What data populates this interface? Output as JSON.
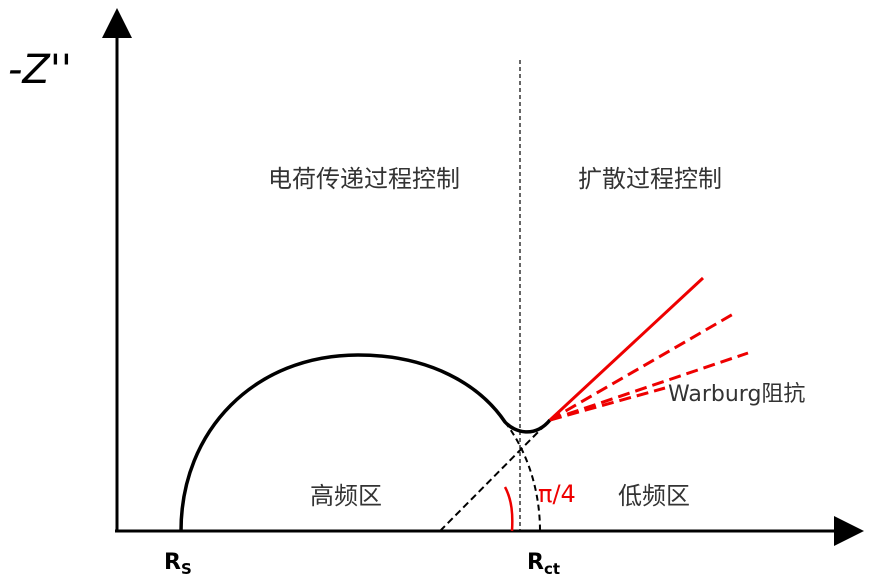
{
  "axis_label": "-Z''",
  "regions": {
    "charge_transfer": "电荷传递过程控制",
    "diffusion": "扩散过程控制"
  },
  "frequency": {
    "high": "高频区",
    "low": "低频区"
  },
  "warburg": "Warburg阻抗",
  "angle": "π/4",
  "points": {
    "rs": {
      "main": "R",
      "sub": "S"
    },
    "rct": {
      "main": "R",
      "sub": "ct"
    }
  }
}
